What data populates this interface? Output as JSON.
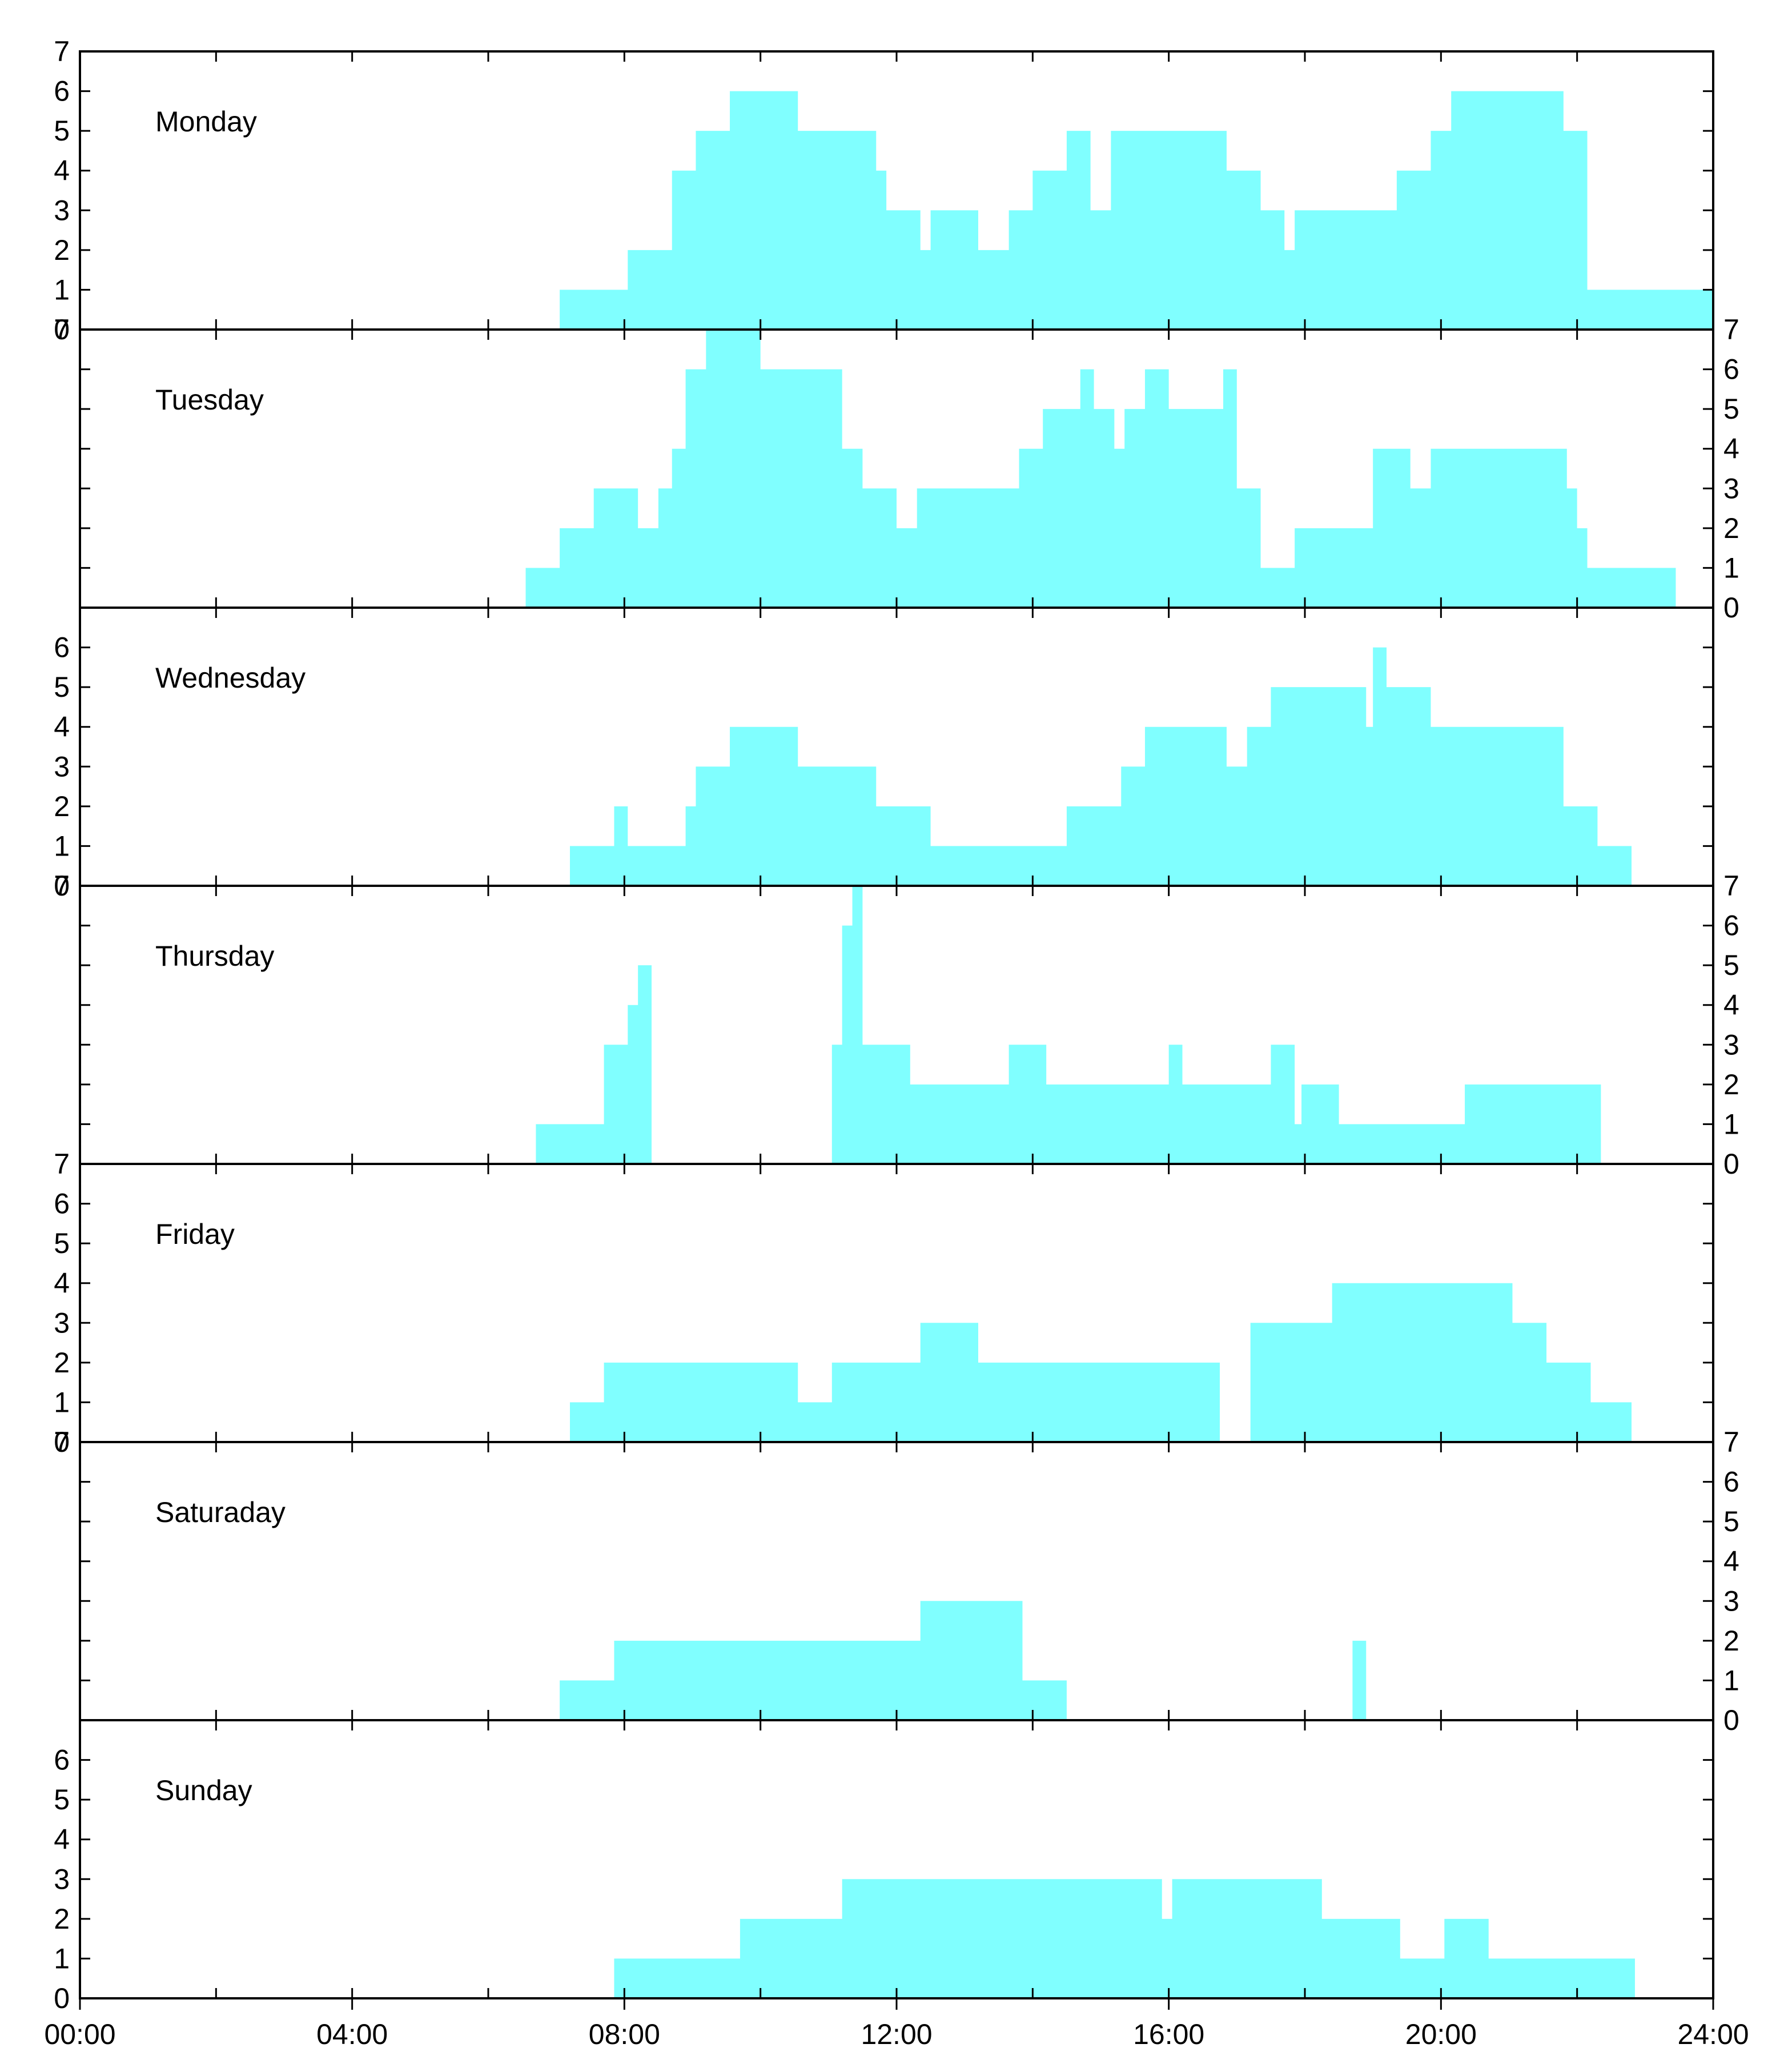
{
  "chart_data": {
    "type": "area",
    "title": "",
    "xlabel": "",
    "ylabel": "",
    "fill_color": "#80ffff",
    "xlim": [
      0,
      24
    ],
    "ylim": [
      0,
      7
    ],
    "x_ticks": [
      {
        "value": 0,
        "label": "00:00"
      },
      {
        "value": 4,
        "label": "04:00"
      },
      {
        "value": 8,
        "label": "08:00"
      },
      {
        "value": 12,
        "label": "12:00"
      },
      {
        "value": 16,
        "label": "16:00"
      },
      {
        "value": 20,
        "label": "20:00"
      },
      {
        "value": 24,
        "label": "24:00"
      }
    ],
    "panels": [
      {
        "name": "Monday",
        "axis_side": "left",
        "tick_labels": [
          "0",
          "1",
          "2",
          "3",
          "4",
          "5",
          "6",
          "7"
        ],
        "steps": [
          [
            7.05,
            1
          ],
          [
            8.05,
            2
          ],
          [
            8.7,
            4
          ],
          [
            9.05,
            5
          ],
          [
            9.55,
            6
          ],
          [
            10.55,
            5
          ],
          [
            11.7,
            4
          ],
          [
            11.85,
            3
          ],
          [
            12.35,
            2
          ],
          [
            12.5,
            3
          ],
          [
            13.2,
            2
          ],
          [
            13.65,
            3
          ],
          [
            14.0,
            4
          ],
          [
            14.5,
            5
          ],
          [
            14.85,
            3
          ],
          [
            15.15,
            5
          ],
          [
            16.85,
            4
          ],
          [
            17.35,
            3
          ],
          [
            17.7,
            2
          ],
          [
            17.85,
            3
          ],
          [
            19.35,
            4
          ],
          [
            19.85,
            5
          ],
          [
            20.15,
            6
          ],
          [
            21.8,
            5
          ],
          [
            22.15,
            1
          ],
          [
            24.0,
            1
          ]
        ]
      },
      {
        "name": "Tuesday",
        "axis_side": "right",
        "tick_labels": [
          "0",
          "1",
          "2",
          "3",
          "4",
          "5",
          "6",
          "7"
        ],
        "left_label": "7",
        "steps": [
          [
            6.55,
            1
          ],
          [
            7.05,
            2
          ],
          [
            7.55,
            3
          ],
          [
            8.2,
            2
          ],
          [
            8.5,
            3
          ],
          [
            8.7,
            4
          ],
          [
            8.9,
            6
          ],
          [
            9.2,
            7
          ],
          [
            10.0,
            6
          ],
          [
            11.2,
            4
          ],
          [
            11.5,
            3
          ],
          [
            12.0,
            2
          ],
          [
            12.3,
            3
          ],
          [
            13.8,
            4
          ],
          [
            14.15,
            5
          ],
          [
            14.7,
            6
          ],
          [
            14.9,
            5
          ],
          [
            15.2,
            4
          ],
          [
            15.35,
            5
          ],
          [
            15.65,
            6
          ],
          [
            16.0,
            5
          ],
          [
            16.8,
            6
          ],
          [
            17.0,
            3
          ],
          [
            17.35,
            1
          ],
          [
            17.85,
            2
          ],
          [
            19.0,
            4
          ],
          [
            19.55,
            3
          ],
          [
            19.85,
            4
          ],
          [
            21.85,
            3
          ],
          [
            22.0,
            2
          ],
          [
            22.15,
            1
          ],
          [
            23.45,
            0
          ]
        ]
      },
      {
        "name": "Wednesday",
        "axis_side": "left",
        "tick_labels": [
          "0",
          "1",
          "2",
          "3",
          "4",
          "5",
          "6"
        ],
        "steps": [
          [
            7.2,
            1
          ],
          [
            7.85,
            2
          ],
          [
            8.05,
            1
          ],
          [
            8.9,
            2
          ],
          [
            9.05,
            3
          ],
          [
            9.55,
            4
          ],
          [
            10.55,
            3
          ],
          [
            11.7,
            2
          ],
          [
            12.5,
            1
          ],
          [
            14.5,
            2
          ],
          [
            15.3,
            3
          ],
          [
            15.65,
            4
          ],
          [
            16.85,
            3
          ],
          [
            17.15,
            4
          ],
          [
            17.5,
            5
          ],
          [
            18.9,
            4
          ],
          [
            19.0,
            6
          ],
          [
            19.2,
            5
          ],
          [
            19.85,
            4
          ],
          [
            21.8,
            2
          ],
          [
            22.3,
            1
          ],
          [
            22.8,
            0
          ]
        ]
      },
      {
        "name": "Thursday",
        "axis_side": "right",
        "tick_labels": [
          "0",
          "1",
          "2",
          "3",
          "4",
          "5",
          "6",
          "7"
        ],
        "left_label": "7",
        "steps": [
          [
            6.7,
            1
          ],
          [
            7.7,
            3
          ],
          [
            8.05,
            4
          ],
          [
            8.2,
            5
          ],
          [
            8.4,
            0
          ],
          [
            11.05,
            3
          ],
          [
            11.2,
            6
          ],
          [
            11.35,
            7
          ],
          [
            11.5,
            3
          ],
          [
            12.2,
            2
          ],
          [
            13.65,
            3
          ],
          [
            14.2,
            2
          ],
          [
            16.0,
            3
          ],
          [
            16.2,
            2
          ],
          [
            17.5,
            3
          ],
          [
            17.85,
            1
          ],
          [
            17.95,
            2
          ],
          [
            18.5,
            1
          ],
          [
            20.35,
            2
          ],
          [
            22.35,
            0
          ]
        ]
      },
      {
        "name": "Friday",
        "axis_side": "left",
        "tick_labels": [
          "0",
          "1",
          "2",
          "3",
          "4",
          "5",
          "6"
        ],
        "left_label": "7",
        "steps": [
          [
            7.2,
            1
          ],
          [
            7.7,
            2
          ],
          [
            10.55,
            1
          ],
          [
            11.05,
            2
          ],
          [
            12.35,
            3
          ],
          [
            13.2,
            2
          ],
          [
            16.75,
            0
          ],
          [
            17.2,
            3
          ],
          [
            18.4,
            4
          ],
          [
            21.05,
            3
          ],
          [
            21.55,
            2
          ],
          [
            22.2,
            1
          ],
          [
            22.8,
            0
          ]
        ]
      },
      {
        "name": "Saturaday",
        "axis_side": "right",
        "tick_labels": [
          "0",
          "1",
          "2",
          "3",
          "4",
          "5",
          "6",
          "7"
        ],
        "left_label": "7",
        "steps": [
          [
            7.05,
            1
          ],
          [
            7.85,
            2
          ],
          [
            12.35,
            3
          ],
          [
            13.85,
            1
          ],
          [
            14.5,
            0
          ],
          [
            18.7,
            2
          ],
          [
            18.9,
            0
          ]
        ]
      },
      {
        "name": "Sunday",
        "axis_side": "left",
        "tick_labels": [
          "0",
          "1",
          "2",
          "3",
          "4",
          "5",
          "6"
        ],
        "steps": [
          [
            7.85,
            1
          ],
          [
            9.7,
            2
          ],
          [
            11.2,
            3
          ],
          [
            15.9,
            2
          ],
          [
            16.05,
            3
          ],
          [
            18.25,
            2
          ],
          [
            19.4,
            1
          ],
          [
            20.05,
            2
          ],
          [
            20.7,
            1
          ],
          [
            22.85,
            0
          ]
        ]
      }
    ]
  }
}
